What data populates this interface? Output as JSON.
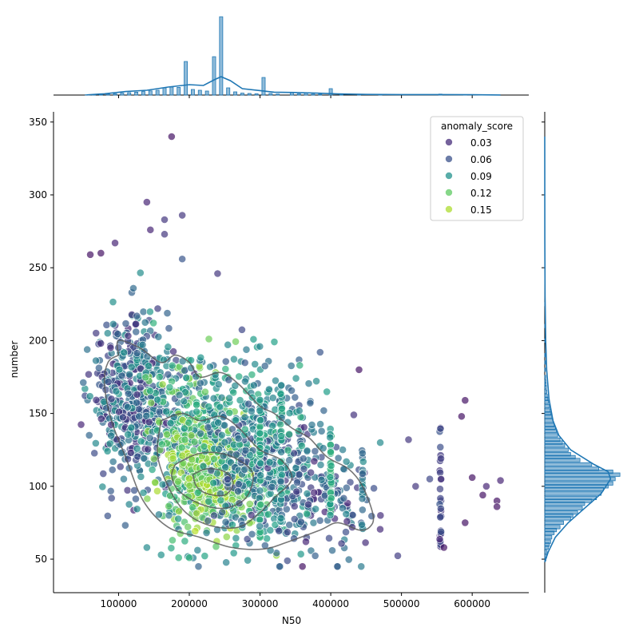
{
  "chart_data": {
    "type": "scatter",
    "subtype": "jointplot",
    "x_label": "N50",
    "y_label": "number",
    "x_ticks": [
      100000,
      200000,
      300000,
      400000,
      500000,
      600000
    ],
    "x_tick_labels": [
      "100000",
      "200000",
      "300000",
      "400000",
      "500000",
      "600000"
    ],
    "y_ticks": [
      50,
      100,
      150,
      200,
      250,
      300,
      350
    ],
    "y_tick_labels": [
      "50",
      "100",
      "150",
      "200",
      "250",
      "300",
      "350"
    ],
    "xlim": [
      8000,
      680000
    ],
    "ylim": [
      27,
      357
    ],
    "legend": {
      "title": "anomaly_score",
      "placement": "top-right",
      "entries": [
        {
          "label": "0.03",
          "color": "#472d7b"
        },
        {
          "label": "0.06",
          "color": "#3b528b"
        },
        {
          "label": "0.09",
          "color": "#21918c"
        },
        {
          "label": "0.12",
          "color": "#5ec962"
        },
        {
          "label": "0.15",
          "color": "#addc30"
        }
      ]
    },
    "hue_range": [
      0.0,
      0.17
    ],
    "point_groups": [
      {
        "cx": 120000,
        "cy": 160,
        "sx": 30000,
        "sy": 28,
        "n": 500,
        "hue": [
          0.02,
          0.1
        ]
      },
      {
        "cx": 210000,
        "cy": 130,
        "sx": 40000,
        "sy": 30,
        "n": 450,
        "hue": [
          0.06,
          0.16
        ]
      },
      {
        "cx": 235000,
        "cy": 105,
        "sx": 30000,
        "sy": 15,
        "n": 320,
        "hue": [
          0.13,
          0.17
        ]
      },
      {
        "cx": 300000,
        "cy": 110,
        "sx": 45000,
        "sy": 25,
        "n": 320,
        "hue": [
          0.04,
          0.12
        ]
      },
      {
        "cx": 380000,
        "cy": 95,
        "sx": 40000,
        "sy": 22,
        "n": 150,
        "hue": [
          0.02,
          0.09
        ]
      },
      {
        "cx": 300000,
        "cy": 150,
        "sx": 45000,
        "sy": 22,
        "n": 120,
        "hue": [
          0.05,
          0.12
        ]
      }
    ],
    "columns": [
      {
        "x": 300000,
        "y": [
          65,
          160
        ],
        "n": 45,
        "hue": [
          0.08,
          0.13
        ]
      },
      {
        "x": 330000,
        "y": [
          75,
          170
        ],
        "n": 40,
        "hue": [
          0.06,
          0.12
        ]
      },
      {
        "x": 400000,
        "y": [
          80,
          140
        ],
        "n": 35,
        "hue": [
          0.09,
          0.13
        ]
      },
      {
        "x": 445000,
        "y": [
          70,
          125
        ],
        "n": 20,
        "hue": [
          0.05,
          0.1
        ]
      },
      {
        "x": 555000,
        "y": [
          58,
          146
        ],
        "n": 30,
        "hue": [
          0.02,
          0.05
        ]
      }
    ],
    "outliers": [
      {
        "x": 175000,
        "y": 340,
        "hue": 0.01
      },
      {
        "x": 140000,
        "y": 295,
        "hue": 0.02
      },
      {
        "x": 190000,
        "y": 286,
        "hue": 0.03
      },
      {
        "x": 165000,
        "y": 283,
        "hue": 0.03
      },
      {
        "x": 145000,
        "y": 276,
        "hue": 0.02
      },
      {
        "x": 165000,
        "y": 273,
        "hue": 0.03
      },
      {
        "x": 95000,
        "y": 267,
        "hue": 0.02
      },
      {
        "x": 75000,
        "y": 260,
        "hue": 0.01
      },
      {
        "x": 60000,
        "y": 259,
        "hue": 0.01
      },
      {
        "x": 190000,
        "y": 256,
        "hue": 0.05
      },
      {
        "x": 240000,
        "y": 246,
        "hue": 0.03
      },
      {
        "x": 385000,
        "y": 192,
        "hue": 0.05
      },
      {
        "x": 440000,
        "y": 180,
        "hue": 0.01
      },
      {
        "x": 590000,
        "y": 159,
        "hue": 0.01
      },
      {
        "x": 585000,
        "y": 148,
        "hue": 0.01
      },
      {
        "x": 600000,
        "y": 106,
        "hue": 0.01
      },
      {
        "x": 640000,
        "y": 104,
        "hue": 0.02
      },
      {
        "x": 620000,
        "y": 100,
        "hue": 0.02
      },
      {
        "x": 615000,
        "y": 94,
        "hue": 0.01
      },
      {
        "x": 635000,
        "y": 90,
        "hue": 0.01
      },
      {
        "x": 635000,
        "y": 86,
        "hue": 0.01
      },
      {
        "x": 590000,
        "y": 75,
        "hue": 0.01
      },
      {
        "x": 360000,
        "y": 45,
        "hue": 0.01
      },
      {
        "x": 140000,
        "y": 58,
        "hue": 0.09
      },
      {
        "x": 185000,
        "y": 51,
        "hue": 0.12
      },
      {
        "x": 200000,
        "y": 51,
        "hue": 0.12
      },
      {
        "x": 560000,
        "y": 58,
        "hue": 0.01
      },
      {
        "x": 510000,
        "y": 132,
        "hue": 0.03
      },
      {
        "x": 470000,
        "y": 130,
        "hue": 0.09
      },
      {
        "x": 540000,
        "y": 105,
        "hue": 0.04
      },
      {
        "x": 520000,
        "y": 100,
        "hue": 0.03
      }
    ],
    "kde_contours": [
      [
        [
          100000,
          190
        ],
        [
          100000,
          200
        ],
        [
          130000,
          195
        ],
        [
          160000,
          185
        ],
        [
          180000,
          190
        ],
        [
          200000,
          185
        ],
        [
          215000,
          175
        ],
        [
          245000,
          178
        ],
        [
          270000,
          170
        ],
        [
          300000,
          155
        ],
        [
          320000,
          150
        ],
        [
          345000,
          140
        ],
        [
          370000,
          133
        ],
        [
          395000,
          120
        ],
        [
          425000,
          112
        ],
        [
          445000,
          100
        ],
        [
          460000,
          80
        ],
        [
          455000,
          72
        ],
        [
          440000,
          70
        ],
        [
          410000,
          75
        ],
        [
          385000,
          70
        ],
        [
          340000,
          62
        ],
        [
          305000,
          57
        ],
        [
          260000,
          58
        ],
        [
          215000,
          65
        ],
        [
          170000,
          72
        ],
        [
          135000,
          90
        ],
        [
          110000,
          120
        ],
        [
          90000,
          145
        ],
        [
          80000,
          170
        ],
        [
          85000,
          185
        ],
        [
          100000,
          190
        ]
      ],
      [
        [
          160000,
          145
        ],
        [
          190000,
          150
        ],
        [
          215000,
          145
        ],
        [
          245000,
          148
        ],
        [
          270000,
          140
        ],
        [
          300000,
          125
        ],
        [
          330000,
          118
        ],
        [
          345000,
          105
        ],
        [
          320000,
          92
        ],
        [
          300000,
          82
        ],
        [
          270000,
          72
        ],
        [
          230000,
          73
        ],
        [
          195000,
          82
        ],
        [
          170000,
          100
        ],
        [
          155000,
          122
        ],
        [
          160000,
          145
        ]
      ],
      [
        [
          180000,
          115
        ],
        [
          210000,
          122
        ],
        [
          240000,
          123
        ],
        [
          270000,
          118
        ],
        [
          290000,
          108
        ],
        [
          280000,
          92
        ],
        [
          250000,
          85
        ],
        [
          215000,
          88
        ],
        [
          185000,
          97
        ],
        [
          175000,
          107
        ],
        [
          180000,
          115
        ]
      ],
      [
        [
          205000,
          108
        ],
        [
          225000,
          112
        ],
        [
          250000,
          110
        ],
        [
          262000,
          102
        ],
        [
          250000,
          94
        ],
        [
          225000,
          95
        ],
        [
          210000,
          100
        ],
        [
          205000,
          108
        ]
      ]
    ],
    "top_marginal": {
      "bins": [
        [
          55000,
          0.2
        ],
        [
          65000,
          0.3
        ],
        [
          75000,
          0.4
        ],
        [
          85000,
          0.6
        ],
        [
          95000,
          0.8
        ],
        [
          105000,
          1.2
        ],
        [
          115000,
          1.5
        ],
        [
          125000,
          1.8
        ],
        [
          135000,
          2.2
        ],
        [
          145000,
          2.6
        ],
        [
          155000,
          3.0
        ],
        [
          165000,
          4.5
        ],
        [
          175000,
          5.0
        ],
        [
          185000,
          4.8
        ],
        [
          195000,
          21
        ],
        [
          205000,
          3.5
        ],
        [
          215000,
          3.0
        ],
        [
          225000,
          2.5
        ],
        [
          235000,
          24
        ],
        [
          245000,
          49
        ],
        [
          255000,
          4.5
        ],
        [
          265000,
          2.0
        ],
        [
          275000,
          1.2
        ],
        [
          285000,
          1.0
        ],
        [
          295000,
          0.8
        ],
        [
          305000,
          11
        ],
        [
          315000,
          1.0
        ],
        [
          325000,
          0.6
        ],
        [
          345000,
          1.5
        ],
        [
          355000,
          0.8
        ],
        [
          365000,
          1.2
        ],
        [
          375000,
          0.6
        ],
        [
          385000,
          0.5
        ],
        [
          400000,
          4.0
        ],
        [
          415000,
          0.4
        ],
        [
          440000,
          0.4
        ],
        [
          470000,
          0.3
        ],
        [
          555000,
          0.6
        ],
        [
          590000,
          0.3
        ],
        [
          620000,
          0.3
        ]
      ],
      "kde": [
        [
          55000,
          0.1
        ],
        [
          80000,
          0.8
        ],
        [
          110000,
          2.2
        ],
        [
          140000,
          3.0
        ],
        [
          170000,
          5.0
        ],
        [
          200000,
          6.5
        ],
        [
          220000,
          6.0
        ],
        [
          235000,
          9.5
        ],
        [
          245000,
          11.5
        ],
        [
          258000,
          9.0
        ],
        [
          275000,
          4.0
        ],
        [
          300000,
          2.8
        ],
        [
          320000,
          1.8
        ],
        [
          350000,
          1.6
        ],
        [
          380000,
          1.2
        ],
        [
          410000,
          0.7
        ],
        [
          450000,
          0.4
        ],
        [
          500000,
          0.3
        ],
        [
          555000,
          0.3
        ],
        [
          600000,
          0.2
        ],
        [
          640000,
          0.05
        ]
      ],
      "max": 50
    },
    "right_marginal": {
      "bins": [
        [
          50,
          0.5
        ],
        [
          52,
          0.8
        ],
        [
          55,
          1.0
        ],
        [
          58,
          1.5
        ],
        [
          60,
          2.0
        ],
        [
          62,
          2.5
        ],
        [
          65,
          3.0
        ],
        [
          68,
          4.0
        ],
        [
          70,
          5.0
        ],
        [
          72,
          6.5
        ],
        [
          75,
          8.0
        ],
        [
          78,
          11.0
        ],
        [
          80,
          12.0
        ],
        [
          82,
          14.0
        ],
        [
          85,
          16.0
        ],
        [
          88,
          17.0
        ],
        [
          90,
          20.0
        ],
        [
          92,
          22.0
        ],
        [
          95,
          24.0
        ],
        [
          98,
          25.0
        ],
        [
          100,
          27.0
        ],
        [
          102,
          29.0
        ],
        [
          105,
          30.0
        ],
        [
          108,
          32.0
        ],
        [
          110,
          29.0
        ],
        [
          112,
          23.0
        ],
        [
          115,
          20.0
        ],
        [
          118,
          15.0
        ],
        [
          120,
          13.0
        ],
        [
          122,
          11.0
        ],
        [
          125,
          10.0
        ],
        [
          128,
          8.5
        ],
        [
          130,
          7.5
        ],
        [
          132,
          6.5
        ],
        [
          135,
          5.5
        ],
        [
          138,
          5.0
        ],
        [
          140,
          4.5
        ],
        [
          142,
          4.0
        ],
        [
          145,
          3.5
        ],
        [
          148,
          3.0
        ],
        [
          150,
          2.6
        ],
        [
          152,
          2.2
        ],
        [
          155,
          2.0
        ],
        [
          158,
          1.6
        ],
        [
          160,
          1.3
        ],
        [
          162,
          1.1
        ],
        [
          165,
          0.9
        ],
        [
          168,
          0.7
        ],
        [
          170,
          0.6
        ],
        [
          172,
          0.5
        ],
        [
          175,
          0.4
        ],
        [
          180,
          0.3
        ],
        [
          185,
          0.3
        ],
        [
          190,
          0.2
        ],
        [
          200,
          0.2
        ],
        [
          210,
          0.15
        ],
        [
          225,
          0.1
        ],
        [
          240,
          0.1
        ],
        [
          260,
          0.05
        ]
      ],
      "kde": [
        [
          48,
          0.0
        ],
        [
          55,
          1.5
        ],
        [
          65,
          4.5
        ],
        [
          75,
          10.0
        ],
        [
          85,
          17.0
        ],
        [
          95,
          24.0
        ],
        [
          105,
          28.0
        ],
        [
          110,
          27.0
        ],
        [
          115,
          21.0
        ],
        [
          125,
          11.0
        ],
        [
          135,
          6.0
        ],
        [
          145,
          3.5
        ],
        [
          160,
          1.8
        ],
        [
          180,
          0.8
        ],
        [
          200,
          0.4
        ],
        [
          230,
          0.15
        ],
        [
          270,
          0.05
        ],
        [
          340,
          0.0
        ]
      ],
      "max": 34
    }
  }
}
